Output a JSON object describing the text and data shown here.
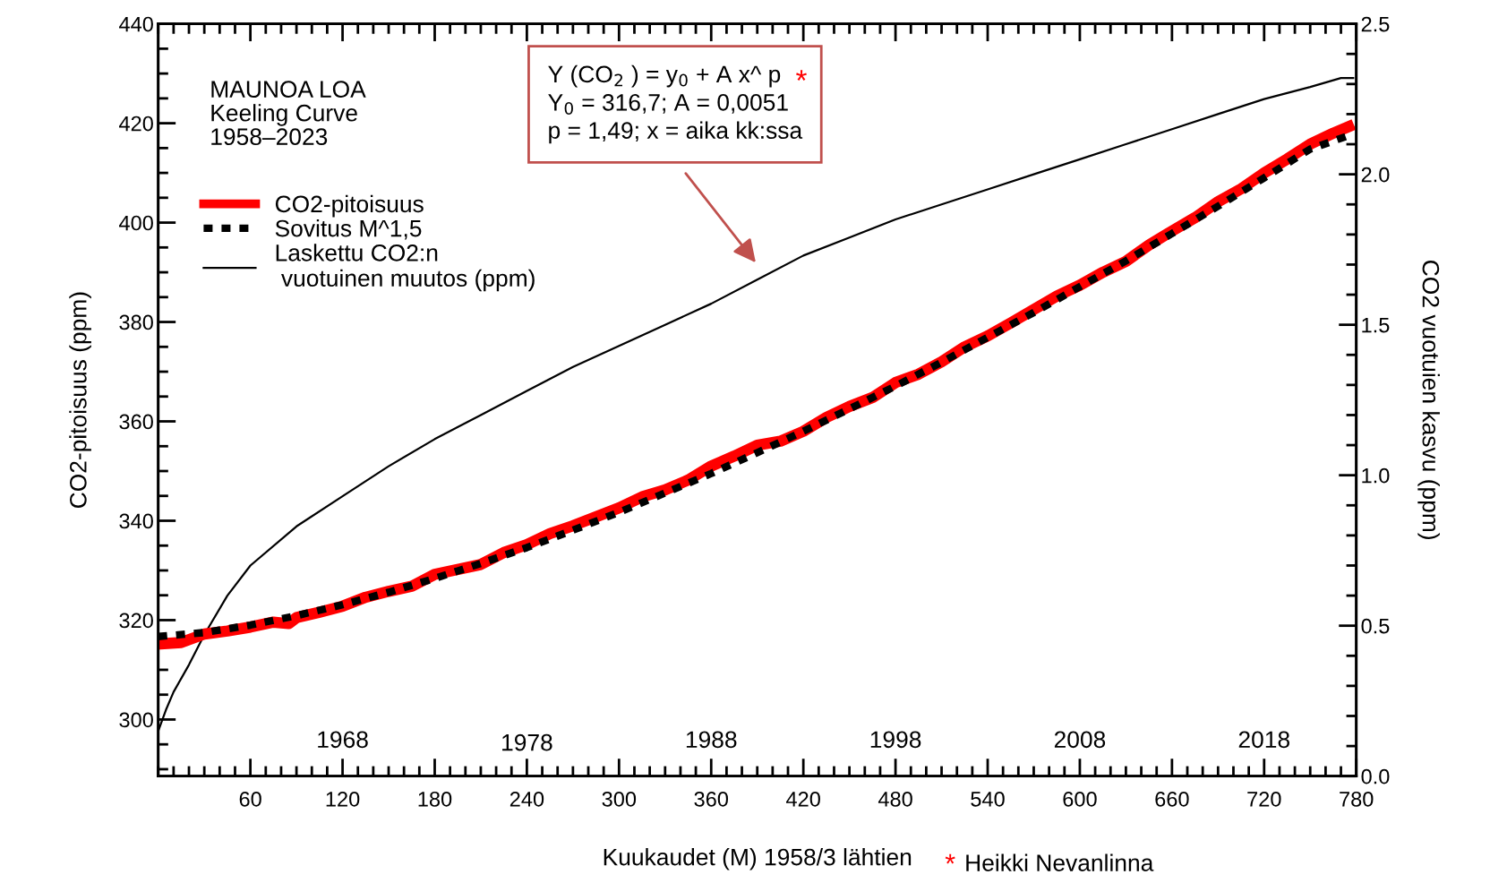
{
  "chart_data": {
    "type": "line",
    "xlabel": "Kuukaudet (M) 1958/3 lähtien",
    "ylabel": "CO2-pitoisuus (ppm)",
    "y2label": "CO2 vuotuien kasvu (ppm)",
    "xlim": [
      0,
      780
    ],
    "xticks": [
      {
        "value": 0,
        "label": null
      },
      {
        "value": 10,
        "label": null
      },
      {
        "value": 20,
        "label": null
      },
      {
        "value": 30,
        "label": null
      },
      {
        "value": 40,
        "label": null
      },
      {
        "value": 50,
        "label": null
      },
      60,
      {
        "value": 70,
        "label": null
      },
      {
        "value": 80,
        "label": null
      },
      {
        "value": 90,
        "label": null
      },
      {
        "value": 100,
        "label": null
      },
      {
        "value": 110,
        "label": null
      },
      120,
      {
        "value": 130,
        "label": null
      },
      {
        "value": 140,
        "label": null
      },
      {
        "value": 150,
        "label": null
      },
      {
        "value": 160,
        "label": null
      },
      {
        "value": 170,
        "label": null
      },
      180,
      {
        "value": 190,
        "label": null
      },
      {
        "value": 200,
        "label": null
      },
      {
        "value": 210,
        "label": null
      },
      {
        "value": 220,
        "label": null
      },
      {
        "value": 230,
        "label": null
      },
      240,
      {
        "value": 250,
        "label": null
      },
      {
        "value": 260,
        "label": null
      },
      {
        "value": 270,
        "label": null
      },
      {
        "value": 280,
        "label": null
      },
      {
        "value": 290,
        "label": null
      },
      300,
      {
        "value": 310,
        "label": null
      },
      {
        "value": 320,
        "label": null
      },
      {
        "value": 330,
        "label": null
      },
      {
        "value": 340,
        "label": null
      },
      {
        "value": 350,
        "label": null
      },
      360,
      {
        "value": 370,
        "label": null
      },
      {
        "value": 380,
        "label": null
      },
      {
        "value": 390,
        "label": null
      },
      {
        "value": 400,
        "label": null
      },
      {
        "value": 410,
        "label": null
      },
      420,
      {
        "value": 430,
        "label": null
      },
      {
        "value": 440,
        "label": null
      },
      {
        "value": 450,
        "label": null
      },
      {
        "value": 460,
        "label": null
      },
      {
        "value": 470,
        "label": null
      },
      480,
      {
        "value": 490,
        "label": null
      },
      {
        "value": 500,
        "label": null
      },
      {
        "value": 510,
        "label": null
      },
      {
        "value": 520,
        "label": null
      },
      {
        "value": 530,
        "label": null
      },
      540,
      {
        "value": 550,
        "label": null
      },
      {
        "value": 560,
        "label": null
      },
      {
        "value": 570,
        "label": null
      },
      {
        "value": 580,
        "label": null
      },
      {
        "value": 590,
        "label": null
      },
      600,
      {
        "value": 610,
        "label": null
      },
      {
        "value": 620,
        "label": null
      },
      {
        "value": 630,
        "label": null
      },
      {
        "value": 640,
        "label": null
      },
      {
        "value": 650,
        "label": null
      },
      660,
      {
        "value": 670,
        "label": null
      },
      {
        "value": 680,
        "label": null
      },
      {
        "value": 690,
        "label": null
      },
      {
        "value": 700,
        "label": null
      },
      {
        "value": 710,
        "label": null
      },
      720,
      {
        "value": 730,
        "label": null
      },
      {
        "value": 740,
        "label": null
      },
      {
        "value": 750,
        "label": null
      },
      {
        "value": 760,
        "label": null
      },
      {
        "value": 770,
        "label": null
      },
      780
    ],
    "ylim": [
      288.6,
      440
    ],
    "yticks": [
      {
        "value": 290,
        "label": null
      },
      {
        "value": 295,
        "label": null
      },
      300,
      {
        "value": 305,
        "label": null
      },
      {
        "value": 310,
        "label": null
      },
      {
        "value": 315,
        "label": null
      },
      320,
      {
        "value": 325,
        "label": null
      },
      {
        "value": 330,
        "label": null
      },
      {
        "value": 335,
        "label": null
      },
      340,
      {
        "value": 345,
        "label": null
      },
      {
        "value": 350,
        "label": null
      },
      {
        "value": 355,
        "label": null
      },
      360,
      {
        "value": 365,
        "label": null
      },
      {
        "value": 370,
        "label": null
      },
      {
        "value": 375,
        "label": null
      },
      380,
      {
        "value": 385,
        "label": null
      },
      {
        "value": 390,
        "label": null
      },
      {
        "value": 395,
        "label": null
      },
      400,
      {
        "value": 405,
        "label": null
      },
      {
        "value": 410,
        "label": null
      },
      {
        "value": 415,
        "label": null
      },
      420,
      {
        "value": 425,
        "label": null
      },
      {
        "value": 430,
        "label": null
      },
      {
        "value": 435,
        "label": null
      },
      440
    ],
    "y2lim": [
      0,
      2.5
    ],
    "y2ticks": [
      {
        "value": 0,
        "label": "0.0"
      },
      {
        "value": 0.1,
        "label": null
      },
      {
        "value": 0.2,
        "label": null
      },
      {
        "value": 0.3,
        "label": null
      },
      {
        "value": 0.4,
        "label": null
      },
      0.5,
      {
        "value": 0.6,
        "label": null
      },
      {
        "value": 0.7,
        "label": null
      },
      {
        "value": 0.8,
        "label": null
      },
      {
        "value": 0.9,
        "label": null
      },
      {
        "value": 1,
        "label": "1.0"
      },
      {
        "value": 1.1,
        "label": null
      },
      {
        "value": 1.2,
        "label": null
      },
      {
        "value": 1.3,
        "label": null
      },
      {
        "value": 1.4,
        "label": null
      },
      1.5,
      {
        "value": 1.6,
        "label": null
      },
      {
        "value": 1.7,
        "label": null
      },
      {
        "value": 1.8,
        "label": null
      },
      {
        "value": 1.9,
        "label": null
      },
      {
        "value": 2,
        "label": "2.0"
      },
      {
        "value": 2.1,
        "label": null
      },
      {
        "value": 2.2,
        "label": null
      },
      {
        "value": 2.3,
        "label": null
      },
      {
        "value": 2.4,
        "label": null
      },
      2.5
    ],
    "grid": false,
    "legend": "top left",
    "series": [
      {
        "name": "CO2-pitoisuus",
        "color": "#ff0000",
        "line_style": "solid",
        "x": [
          0,
          15,
          30,
          45,
          60,
          75,
          85,
          90,
          105,
          120,
          135,
          150,
          165,
          180,
          195,
          210,
          225,
          240,
          255,
          270,
          285,
          300,
          315,
          330,
          345,
          360,
          375,
          390,
          405,
          420,
          435,
          450,
          465,
          480,
          495,
          510,
          525,
          540,
          555,
          570,
          585,
          600,
          615,
          630,
          645,
          660,
          675,
          690,
          705,
          720,
          735,
          750,
          765,
          775
        ],
        "values": [
          315.2,
          315.5,
          317.2,
          317.8,
          318.6,
          319.6,
          319.3,
          320.5,
          321.6,
          322.8,
          324.6,
          325.8,
          326.8,
          329.2,
          330.2,
          331.2,
          333.6,
          335.2,
          337.4,
          339.0,
          340.8,
          342.6,
          344.8,
          346.2,
          348.2,
          351.0,
          353.0,
          355.2,
          356.0,
          358.0,
          360.8,
          363.0,
          364.8,
          367.8,
          369.5,
          372.0,
          375.0,
          377.2,
          379.8,
          382.5,
          385.2,
          387.4,
          390.0,
          392.2,
          395.5,
          398.3,
          401.0,
          404.2,
          406.8,
          410.0,
          412.8,
          415.8,
          418.0,
          419.3
        ]
      },
      {
        "name": "Sovitus M^1,5",
        "color": "#000000",
        "line_style": "dotted",
        "x": [
          0,
          30,
          60,
          90,
          120,
          150,
          180,
          210,
          240,
          270,
          300,
          330,
          360,
          390,
          420,
          450,
          480,
          510,
          540,
          570,
          600,
          630,
          660,
          690,
          720,
          750,
          775
        ],
        "values": [
          316.7,
          317.5,
          319.0,
          320.9,
          323.1,
          325.6,
          328.4,
          331.4,
          334.6,
          338.1,
          341.7,
          345.6,
          349.5,
          353.7,
          358.0,
          362.5,
          367.1,
          371.9,
          376.9,
          381.9,
          387.1,
          392.3,
          397.8,
          403.3,
          409.0,
          414.8,
          417.5
        ]
      },
      {
        "name": "Laskettu CO2:n\n vuotuinen muutos (ppm)",
        "color": "#000000",
        "line_style": "solid",
        "axis": "y2",
        "x": [
          0,
          5,
          10,
          20,
          30,
          45,
          60,
          90,
          120,
          150,
          180,
          210,
          240,
          270,
          300,
          330,
          360,
          390,
          420,
          450,
          480,
          510,
          540,
          570,
          600,
          630,
          660,
          690,
          720,
          750,
          770,
          778
        ],
        "values": [
          0.15,
          0.22,
          0.28,
          0.37,
          0.47,
          0.6,
          0.7,
          0.83,
          0.93,
          1.03,
          1.12,
          1.2,
          1.28,
          1.36,
          1.43,
          1.5,
          1.57,
          1.65,
          1.73,
          1.79,
          1.85,
          1.9,
          1.95,
          2.0,
          2.05,
          2.1,
          2.15,
          2.2,
          2.25,
          2.29,
          2.32,
          2.32
        ]
      }
    ],
    "annotations": [
      "MAUNOA LOA\nKeeling Curve\n1958–2023",
      "Y (CO$_{2}$ ) = y$_{0}$ + A x^ p\nY$_{0}$ = 316,7; A = 0,0051\np = 1,49; x = aika kk:ssa",
      "*",
      "*",
      "Heikki Nevanlinna",
      "1968",
      "1978",
      "1988",
      "1998",
      "2008",
      "2018"
    ]
  }
}
